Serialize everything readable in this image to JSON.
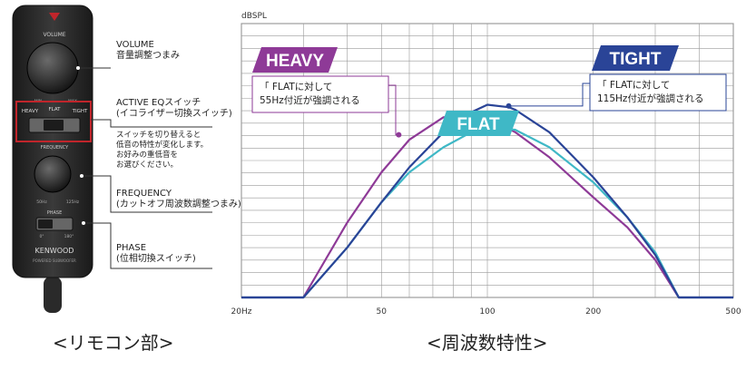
{
  "remote": {
    "body_title": "VOLUME",
    "mini_labels": {
      "min": "MIN",
      "max": "MAX"
    },
    "eq_labels": [
      "HEAVY",
      "FLAT",
      "TIGHT"
    ],
    "freq_label": "FREQUENCY",
    "freq_mini": [
      "50Hz",
      "125Hz"
    ],
    "phase_label": "PHASE",
    "phase_mini": [
      "0°",
      "180°"
    ],
    "brand": "KENWOOD",
    "model": "POWERED SUBWOOFER",
    "colors": {
      "body": "#2b2b2b",
      "eq_frame": "#c0252b"
    }
  },
  "annotations": {
    "volume": [
      "VOLUME",
      "音量調整つまみ"
    ],
    "eq": [
      "ACTIVE EQスイッチ",
      "(イコライザー切換スイッチ)"
    ],
    "eq_note": [
      "スイッチを切り替えると",
      "低音の特性が変化します。",
      "お好みの重低音を",
      "お選びください。"
    ],
    "frequency": [
      "FREQUENCY",
      "(カットオフ周波数調整つまみ)"
    ],
    "phase": [
      "PHASE",
      "(位相切換スイッチ)"
    ]
  },
  "captions": {
    "remote": "<リモコン部>",
    "chart": "<周波数特性>"
  },
  "chart_data": {
    "type": "line",
    "ylabel": "dBSPL",
    "x_scale": "log",
    "xlim": [
      20,
      500
    ],
    "x_ticks": [
      {
        "value": 20,
        "label": "20Hz"
      },
      {
        "value": 50,
        "label": "50"
      },
      {
        "value": 100,
        "label": "100"
      },
      {
        "value": 200,
        "label": "200"
      },
      {
        "value": 500,
        "label": "500"
      }
    ],
    "ylim": [
      0,
      100
    ],
    "grid": true,
    "series": [
      {
        "name": "HEAVY",
        "color": "#8e3a97",
        "x": [
          20,
          30,
          40,
          50,
          60,
          75,
          90,
          100,
          120,
          150,
          200,
          250,
          300,
          350,
          400,
          500
        ],
        "y": [
          0,
          0,
          30,
          50,
          63,
          72,
          73,
          72,
          66,
          56,
          40,
          28,
          15,
          0,
          0,
          0
        ]
      },
      {
        "name": "FLAT",
        "color": "#3fb8c6",
        "x": [
          20,
          30,
          40,
          50,
          60,
          75,
          90,
          100,
          120,
          150,
          200,
          250,
          300,
          350,
          400,
          500
        ],
        "y": [
          0,
          0,
          20,
          38,
          50,
          60,
          66,
          68,
          67,
          60,
          46,
          32,
          18,
          0,
          0,
          0
        ]
      },
      {
        "name": "TIGHT",
        "color": "#2a4497",
        "x": [
          20,
          30,
          40,
          50,
          60,
          75,
          90,
          100,
          115,
          120,
          150,
          200,
          250,
          300,
          350,
          400,
          500
        ],
        "y": [
          0,
          0,
          20,
          38,
          52,
          66,
          74,
          77,
          76,
          75,
          66,
          48,
          32,
          17,
          0,
          0,
          0
        ]
      }
    ],
    "labels": [
      {
        "text": "HEAVY",
        "color": "#8e3a97"
      },
      {
        "text": "FLAT",
        "color": "#3fb8c6"
      },
      {
        "text": "TIGHT",
        "color": "#2a4497"
      }
    ],
    "callouts": [
      {
        "lines": [
          "「 FLATに対して",
          "55Hz付近が強調される"
        ],
        "x": 55,
        "color": "#8e3a97"
      },
      {
        "lines": [
          "「 FLATに対して",
          "115Hz付近が強調される"
        ],
        "x": 115,
        "color": "#2a4497"
      }
    ]
  }
}
